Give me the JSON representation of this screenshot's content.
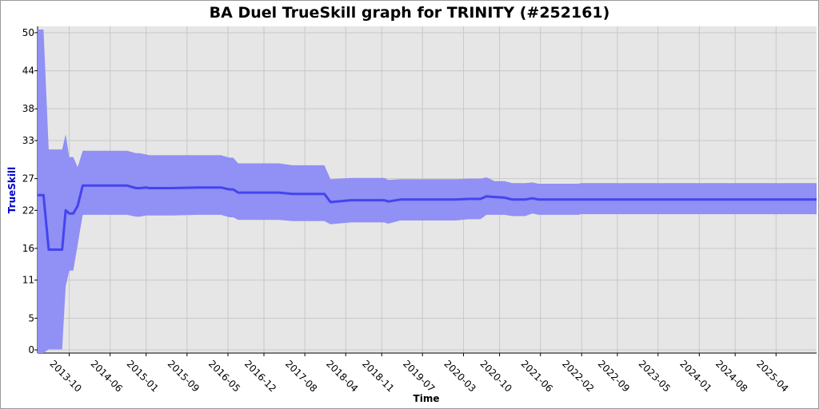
{
  "chart_data": {
    "type": "area",
    "title": "BA Duel TrueSkill graph for TRINITY (#252161)",
    "xlabel": "Time",
    "ylabel": "TrueSkill",
    "ylim": [
      -0.5,
      51
    ],
    "yticks": [
      0,
      5,
      11,
      16,
      22,
      27,
      33,
      38,
      44,
      50
    ],
    "xticks": [
      "2013-10",
      "2014-06",
      "2015-01",
      "2015-09",
      "2016-05",
      "2016-12",
      "2017-08",
      "2018-04",
      "2018-11",
      "2019-07",
      "2020-03",
      "2020-10",
      "2021-06",
      "2022-02",
      "2022-09",
      "2023-05",
      "2024-01",
      "2024-08",
      "2025-04"
    ],
    "x_range": [
      "2013-03-27",
      "2025-11-28"
    ],
    "grid": true,
    "colors": {
      "background": "#e6e6e6",
      "grid": "#c8c8c8",
      "band": "#9090f5",
      "line": "#4444ee",
      "ylabel": "#0000cc"
    },
    "series": [
      {
        "x": [
          "2013-03-27",
          "2013-05-01",
          "2013-06-01",
          "2013-08-20",
          "2013-09-10",
          "2013-10-01",
          "2013-10-25",
          "2013-11-20",
          "2013-12-20",
          "2014-03-01",
          "2014-06-01",
          "2014-09-10",
          "2014-11-01",
          "2014-11-25",
          "2015-01-01",
          "2015-01-20",
          "2015-06-01",
          "2015-11-01",
          "2016-02-10",
          "2016-03-20",
          "2016-05-10",
          "2016-06-01",
          "2016-07-01",
          "2016-09-01",
          "2016-12-15",
          "2017-03-01",
          "2017-05-20",
          "2017-08-01",
          "2017-10-15",
          "2017-11-25",
          "2018-01-01",
          "2018-05-01",
          "2018-09-01",
          "2018-11-15",
          "2018-12-10",
          "2019-02-20",
          "2019-07-01",
          "2020-01-15",
          "2020-04-01",
          "2020-06-10",
          "2020-07-15",
          "2020-09-01",
          "2020-11-01",
          "2020-12-15",
          "2021-03-01",
          "2021-04-15",
          "2021-05-20",
          "2021-08-01",
          "2022-01-15",
          "2022-01-25",
          "2025-11-28"
        ],
        "mean": [
          24.4,
          24.4,
          15.8,
          15.8,
          22.0,
          21.5,
          21.5,
          22.7,
          25.9,
          25.9,
          25.9,
          25.9,
          25.5,
          25.5,
          25.6,
          25.5,
          25.5,
          25.6,
          25.6,
          25.6,
          25.3,
          25.3,
          24.8,
          24.8,
          24.8,
          24.8,
          24.6,
          24.6,
          24.6,
          24.6,
          23.3,
          23.6,
          23.6,
          23.6,
          23.4,
          23.7,
          23.7,
          23.7,
          23.8,
          23.8,
          24.2,
          24.1,
          24.0,
          23.7,
          23.7,
          23.9,
          23.7,
          23.7,
          23.7,
          23.7,
          23.7
        ],
        "upper": [
          50.5,
          50.5,
          31.6,
          31.6,
          34.0,
          30.4,
          30.4,
          28.8,
          31.4,
          31.4,
          31.4,
          31.4,
          31.0,
          31.0,
          30.8,
          30.7,
          30.7,
          30.7,
          30.7,
          30.7,
          30.3,
          30.3,
          29.4,
          29.4,
          29.4,
          29.4,
          29.1,
          29.1,
          29.1,
          29.1,
          26.9,
          27.1,
          27.1,
          27.1,
          26.8,
          26.9,
          26.9,
          26.9,
          27.0,
          27.0,
          27.2,
          26.6,
          26.6,
          26.3,
          26.3,
          26.4,
          26.2,
          26.2,
          26.2,
          26.3,
          26.3
        ],
        "lower": [
          -0.5,
          -0.5,
          0.1,
          0.1,
          10.0,
          12.5,
          12.5,
          16.6,
          21.3,
          21.3,
          21.3,
          21.3,
          21.0,
          21.0,
          21.2,
          21.2,
          21.2,
          21.3,
          21.3,
          21.3,
          20.9,
          20.9,
          20.5,
          20.5,
          20.5,
          20.5,
          20.3,
          20.3,
          20.3,
          20.3,
          19.8,
          20.1,
          20.1,
          20.1,
          19.9,
          20.4,
          20.4,
          20.4,
          20.6,
          20.6,
          21.3,
          21.3,
          21.3,
          21.1,
          21.1,
          21.5,
          21.3,
          21.3,
          21.3,
          21.4,
          21.4
        ]
      }
    ]
  }
}
